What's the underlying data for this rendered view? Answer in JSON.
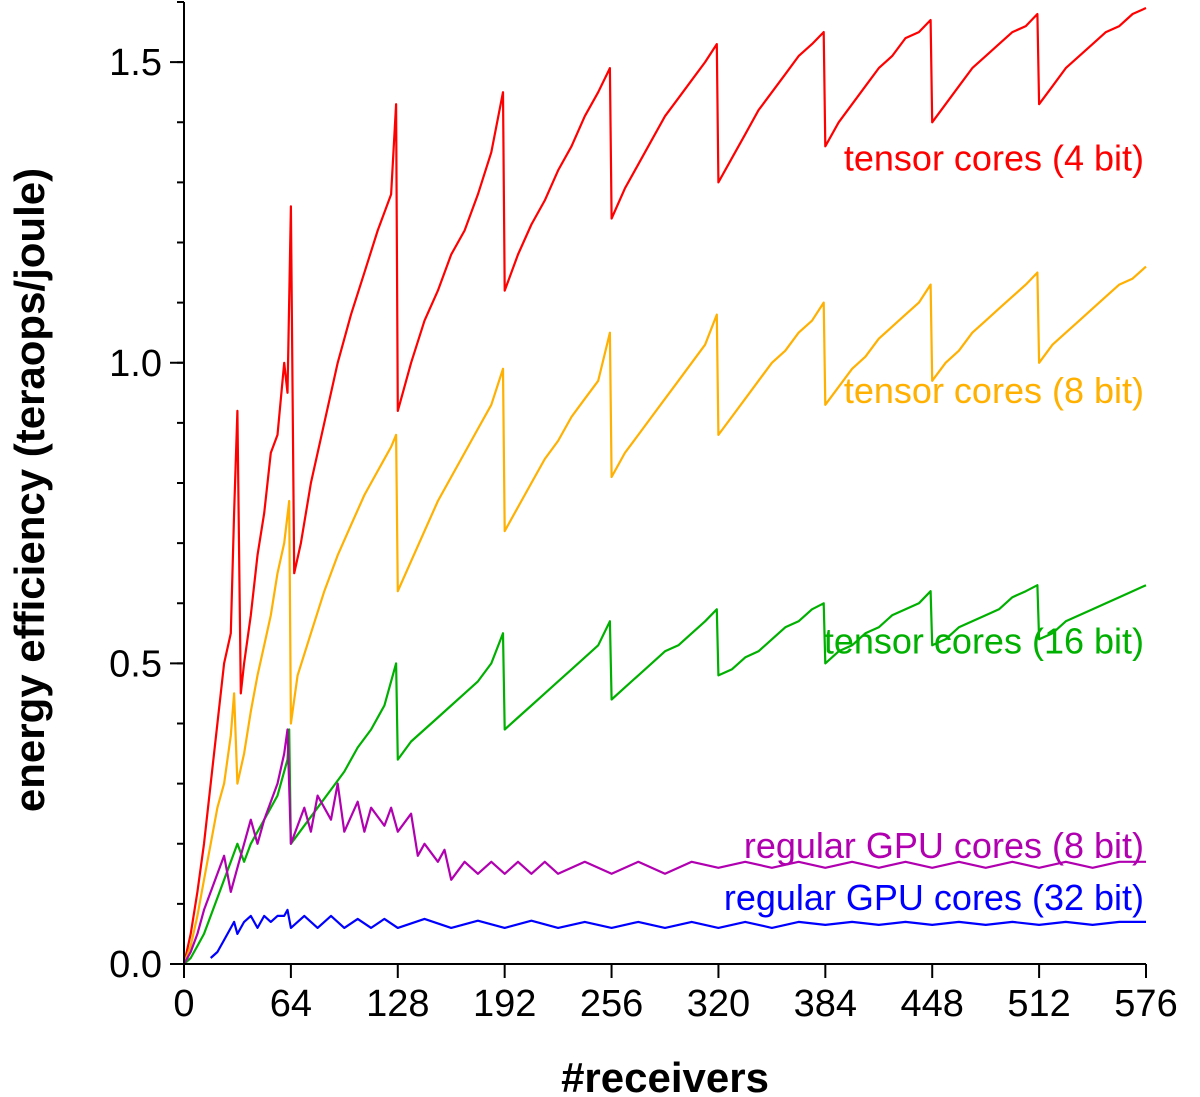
{
  "chart_data": {
    "type": "line",
    "title": "",
    "xlabel": "#receivers",
    "ylabel": "energy efficiency (teraops/joule)",
    "xlim": [
      0,
      576
    ],
    "ylim": [
      0,
      1.6
    ],
    "xticks": [
      0,
      64,
      128,
      192,
      256,
      320,
      384,
      448,
      512,
      576
    ],
    "xtick_labels": [
      "0",
      "64",
      "128",
      "192",
      "256",
      "320",
      "384",
      "448",
      "512",
      "576"
    ],
    "yticks": [
      0.0,
      0.5,
      1.0,
      1.5
    ],
    "ytick_labels": [
      "0.0",
      "0.5",
      "1.0",
      "1.5"
    ],
    "y_minor_step": 0.1,
    "grid": false,
    "series": [
      {
        "name": "tensor cores (4 bit)",
        "color": "#ff0000",
        "x": [
          0,
          4,
          8,
          12,
          16,
          20,
          24,
          28,
          30,
          32,
          34,
          36,
          40,
          44,
          48,
          52,
          56,
          60,
          62,
          64,
          66,
          70,
          76,
          84,
          92,
          100,
          108,
          116,
          124,
          127,
          128,
          136,
          144,
          152,
          160,
          168,
          176,
          184,
          191,
          192,
          200,
          208,
          216,
          224,
          232,
          240,
          248,
          255,
          256,
          264,
          272,
          280,
          288,
          296,
          304,
          312,
          319,
          320,
          328,
          336,
          344,
          352,
          360,
          368,
          376,
          383,
          384,
          392,
          400,
          408,
          416,
          424,
          432,
          440,
          447,
          448,
          456,
          464,
          472,
          480,
          488,
          496,
          504,
          511,
          512,
          520,
          528,
          536,
          544,
          552,
          560,
          568,
          576
        ],
        "y": [
          0.0,
          0.05,
          0.12,
          0.2,
          0.3,
          0.4,
          0.5,
          0.55,
          0.75,
          0.92,
          0.45,
          0.5,
          0.58,
          0.68,
          0.75,
          0.85,
          0.88,
          1.0,
          0.95,
          1.26,
          0.65,
          0.7,
          0.8,
          0.9,
          1.0,
          1.08,
          1.15,
          1.22,
          1.28,
          1.43,
          0.92,
          1.0,
          1.07,
          1.12,
          1.18,
          1.22,
          1.28,
          1.35,
          1.45,
          1.12,
          1.18,
          1.23,
          1.27,
          1.32,
          1.36,
          1.41,
          1.45,
          1.49,
          1.24,
          1.29,
          1.33,
          1.37,
          1.41,
          1.44,
          1.47,
          1.5,
          1.53,
          1.3,
          1.34,
          1.38,
          1.42,
          1.45,
          1.48,
          1.51,
          1.53,
          1.55,
          1.36,
          1.4,
          1.43,
          1.46,
          1.49,
          1.51,
          1.54,
          1.55,
          1.57,
          1.4,
          1.43,
          1.46,
          1.49,
          1.51,
          1.53,
          1.55,
          1.56,
          1.58,
          1.43,
          1.46,
          1.49,
          1.51,
          1.53,
          1.55,
          1.56,
          1.58,
          1.59
        ]
      },
      {
        "name": "tensor cores (8 bit)",
        "color": "#ffb000",
        "x": [
          0,
          4,
          8,
          12,
          16,
          20,
          24,
          28,
          30,
          32,
          36,
          40,
          44,
          48,
          52,
          56,
          60,
          63,
          64,
          68,
          76,
          84,
          92,
          100,
          108,
          116,
          124,
          127,
          128,
          136,
          144,
          152,
          160,
          168,
          176,
          184,
          191,
          192,
          200,
          208,
          216,
          224,
          232,
          240,
          248,
          255,
          256,
          264,
          272,
          280,
          288,
          296,
          304,
          312,
          319,
          320,
          328,
          336,
          344,
          352,
          360,
          368,
          376,
          383,
          384,
          392,
          400,
          408,
          416,
          424,
          432,
          440,
          447,
          448,
          456,
          464,
          472,
          480,
          488,
          496,
          504,
          511,
          512,
          520,
          528,
          536,
          544,
          552,
          560,
          568,
          576
        ],
        "y": [
          0.0,
          0.03,
          0.08,
          0.14,
          0.2,
          0.26,
          0.3,
          0.38,
          0.45,
          0.3,
          0.35,
          0.42,
          0.48,
          0.53,
          0.58,
          0.65,
          0.7,
          0.77,
          0.4,
          0.48,
          0.55,
          0.62,
          0.68,
          0.73,
          0.78,
          0.82,
          0.86,
          0.88,
          0.62,
          0.67,
          0.72,
          0.77,
          0.81,
          0.85,
          0.89,
          0.93,
          0.99,
          0.72,
          0.76,
          0.8,
          0.84,
          0.87,
          0.91,
          0.94,
          0.97,
          1.05,
          0.81,
          0.85,
          0.88,
          0.91,
          0.94,
          0.97,
          1.0,
          1.03,
          1.08,
          0.88,
          0.91,
          0.94,
          0.97,
          1.0,
          1.02,
          1.05,
          1.07,
          1.1,
          0.93,
          0.96,
          0.99,
          1.01,
          1.04,
          1.06,
          1.08,
          1.1,
          1.13,
          0.97,
          1.0,
          1.02,
          1.05,
          1.07,
          1.09,
          1.11,
          1.13,
          1.15,
          1.0,
          1.03,
          1.05,
          1.07,
          1.09,
          1.11,
          1.13,
          1.14,
          1.16
        ]
      },
      {
        "name": "tensor cores (16 bit)",
        "color": "#00b000",
        "x": [
          0,
          4,
          8,
          12,
          16,
          20,
          24,
          28,
          32,
          36,
          40,
          48,
          56,
          62,
          63,
          64,
          72,
          80,
          88,
          96,
          104,
          112,
          120,
          127,
          128,
          136,
          144,
          152,
          160,
          168,
          176,
          184,
          191,
          192,
          200,
          208,
          216,
          224,
          232,
          240,
          248,
          255,
          256,
          264,
          272,
          280,
          288,
          296,
          304,
          312,
          319,
          320,
          328,
          336,
          344,
          352,
          360,
          368,
          376,
          383,
          384,
          392,
          400,
          408,
          416,
          424,
          432,
          440,
          447,
          448,
          456,
          464,
          472,
          480,
          488,
          496,
          504,
          511,
          512,
          520,
          528,
          536,
          544,
          552,
          560,
          568,
          576
        ],
        "y": [
          0.0,
          0.01,
          0.03,
          0.05,
          0.08,
          0.11,
          0.14,
          0.17,
          0.2,
          0.17,
          0.2,
          0.24,
          0.28,
          0.34,
          0.39,
          0.2,
          0.23,
          0.26,
          0.29,
          0.32,
          0.36,
          0.39,
          0.43,
          0.5,
          0.34,
          0.37,
          0.39,
          0.41,
          0.43,
          0.45,
          0.47,
          0.5,
          0.55,
          0.39,
          0.41,
          0.43,
          0.45,
          0.47,
          0.49,
          0.51,
          0.53,
          0.57,
          0.44,
          0.46,
          0.48,
          0.5,
          0.52,
          0.53,
          0.55,
          0.57,
          0.59,
          0.48,
          0.49,
          0.51,
          0.52,
          0.54,
          0.56,
          0.57,
          0.59,
          0.6,
          0.5,
          0.52,
          0.53,
          0.55,
          0.56,
          0.58,
          0.59,
          0.6,
          0.62,
          0.53,
          0.54,
          0.56,
          0.57,
          0.58,
          0.59,
          0.61,
          0.62,
          0.63,
          0.54,
          0.55,
          0.57,
          0.58,
          0.59,
          0.6,
          0.61,
          0.62,
          0.63
        ]
      },
      {
        "name": "regular GPU cores (8 bit)",
        "color": "#b000b0",
        "x": [
          0,
          4,
          8,
          12,
          16,
          20,
          24,
          28,
          32,
          36,
          40,
          44,
          48,
          52,
          56,
          60,
          62,
          64,
          72,
          76,
          80,
          88,
          92,
          96,
          104,
          108,
          112,
          120,
          124,
          128,
          136,
          140,
          144,
          152,
          156,
          160,
          168,
          176,
          184,
          192,
          200,
          208,
          216,
          224,
          240,
          256,
          272,
          288,
          304,
          320,
          336,
          352,
          368,
          384,
          400,
          416,
          432,
          448,
          464,
          480,
          496,
          512,
          528,
          544,
          560,
          576
        ],
        "y": [
          0.0,
          0.02,
          0.05,
          0.09,
          0.12,
          0.15,
          0.18,
          0.12,
          0.16,
          0.2,
          0.24,
          0.2,
          0.24,
          0.27,
          0.3,
          0.35,
          0.39,
          0.2,
          0.26,
          0.22,
          0.28,
          0.24,
          0.3,
          0.22,
          0.27,
          0.22,
          0.26,
          0.23,
          0.26,
          0.22,
          0.25,
          0.18,
          0.2,
          0.17,
          0.19,
          0.14,
          0.17,
          0.15,
          0.17,
          0.15,
          0.17,
          0.15,
          0.17,
          0.15,
          0.17,
          0.15,
          0.17,
          0.15,
          0.17,
          0.16,
          0.17,
          0.16,
          0.17,
          0.16,
          0.17,
          0.16,
          0.17,
          0.16,
          0.17,
          0.16,
          0.17,
          0.16,
          0.17,
          0.16,
          0.17,
          0.17
        ]
      },
      {
        "name": "regular GPU cores (32 bit)",
        "color": "#0000ff",
        "x": [
          16,
          20,
          24,
          28,
          30,
          32,
          36,
          40,
          44,
          48,
          52,
          56,
          60,
          62,
          64,
          72,
          80,
          88,
          96,
          104,
          112,
          120,
          128,
          144,
          160,
          176,
          192,
          208,
          224,
          240,
          256,
          272,
          288,
          304,
          320,
          336,
          352,
          368,
          384,
          400,
          416,
          432,
          448,
          464,
          480,
          496,
          512,
          528,
          544,
          560,
          576
        ],
        "y": [
          0.01,
          0.02,
          0.04,
          0.06,
          0.07,
          0.05,
          0.07,
          0.08,
          0.06,
          0.08,
          0.07,
          0.08,
          0.08,
          0.09,
          0.06,
          0.08,
          0.06,
          0.08,
          0.06,
          0.075,
          0.06,
          0.075,
          0.06,
          0.075,
          0.06,
          0.072,
          0.06,
          0.072,
          0.06,
          0.07,
          0.06,
          0.07,
          0.06,
          0.07,
          0.06,
          0.07,
          0.06,
          0.07,
          0.065,
          0.07,
          0.065,
          0.07,
          0.065,
          0.07,
          0.065,
          0.07,
          0.065,
          0.07,
          0.065,
          0.07,
          0.07
        ]
      }
    ]
  }
}
